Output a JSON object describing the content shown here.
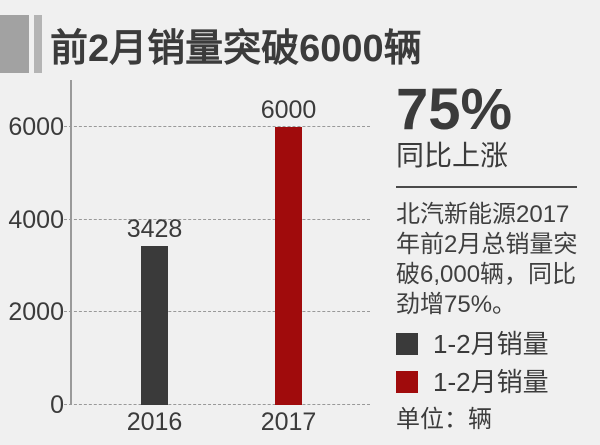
{
  "header": {
    "title": "前2月销量突破6000辆"
  },
  "chart_data": {
    "type": "bar",
    "title": "前2月销量突破6000辆",
    "categories": [
      "2016",
      "2017"
    ],
    "values": [
      3428,
      6000
    ],
    "bar_colors": [
      "#3a3a3a",
      "#a00b0c"
    ],
    "data_labels": [
      "3428",
      "6000"
    ],
    "xlabel": "",
    "ylabel": "",
    "ylim": [
      0,
      6000
    ],
    "yticks": [
      0,
      2000,
      4000,
      6000
    ],
    "ytick_labels": [
      "0",
      "2000",
      "4000",
      "6000"
    ],
    "grid": "horizontal-dashed",
    "legend_position": "right",
    "legend": [
      {
        "label": "1-2月销量",
        "color": "#3a3a3a",
        "series": "2016"
      },
      {
        "label": "1-2月销量",
        "color": "#a00b0c",
        "series": "2017"
      }
    ],
    "unit_note": "单位：辆"
  },
  "right_panel": {
    "headline_value": "75%",
    "headline_caption": "同比上涨",
    "description_lines": [
      "北汽新能源2017",
      "年前2月总销量突",
      "破6,000辆，同比",
      "劲增75%。"
    ]
  },
  "colors": {
    "background": "#f0f0f0",
    "text": "#3b3b3b",
    "bar_dark": "#3a3a3a",
    "bar_red": "#a00b0c",
    "grid": "#999999",
    "axis": "#9a9a9a",
    "decor_square": "#a2a2a2",
    "decor_bar": "#b4b4b4",
    "divider": "#4a4a4a"
  }
}
